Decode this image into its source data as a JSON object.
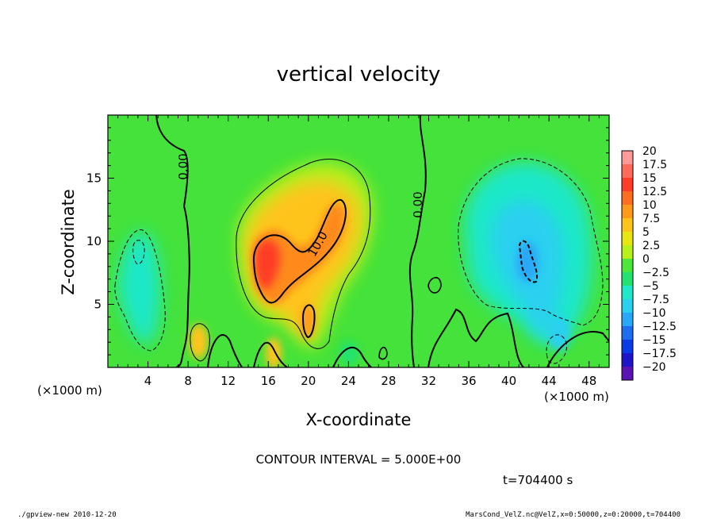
{
  "chart_data": {
    "type": "heatmap",
    "title": "vertical velocity",
    "xlabel": "X-coordinate",
    "ylabel": "Z-coordinate",
    "x_unit_label": "(×1000 m)",
    "z_unit_label": "(×1000 m)",
    "xlim": [
      0,
      50
    ],
    "zlim": [
      0,
      20
    ],
    "x_ticks": [
      4,
      8,
      12,
      16,
      20,
      24,
      28,
      32,
      36,
      40,
      44,
      48
    ],
    "z_ticks": [
      5,
      10,
      15
    ],
    "colorbar_levels": [
      20,
      17.5,
      15,
      12.5,
      10,
      7.5,
      5,
      2.5,
      0,
      -2.5,
      -5,
      -7.5,
      -10,
      -12.5,
      -15,
      -17.5,
      -20
    ],
    "colorbar_labels": [
      "20",
      "17.5",
      "15",
      "12.5",
      "10",
      "7.5",
      "5",
      "2.5",
      "0",
      "−2.5",
      "−5",
      "−7.5",
      "−10",
      "−12.5",
      "−15",
      "−17.5",
      "−20"
    ],
    "colorbar_colors": [
      "#ff9a9a",
      "#ff6a5a",
      "#ff3c28",
      "#ff6e1e",
      "#ff9a1a",
      "#ffc41a",
      "#e8e610",
      "#b8f01a",
      "#4ce63c",
      "#24e270",
      "#1ee8c8",
      "#2ad0f0",
      "#2aa8f8",
      "#1e6ef0",
      "#0a3ce6",
      "#1e14c8",
      "#5a14b4"
    ],
    "contour_labels": [
      "0.00",
      "0.00",
      "10.0"
    ],
    "contour_interval_text": "CONTOUR INTERVAL = 5.000E+00",
    "time_text": "t=704400 s",
    "regions": [
      {
        "name": "updraft",
        "x": 19,
        "z": 9,
        "peak": 15
      },
      {
        "name": "downdraft-east",
        "x": 43,
        "z": 8,
        "min": -10
      },
      {
        "name": "downdraft-west",
        "x": 3.5,
        "z": 6,
        "min": -5
      }
    ]
  },
  "footer": {
    "left": "./gpview-new  2010-12-20",
    "right": "MarsCond_VelZ.nc@VelZ,x=0:50000,z=0:20000,t=704400"
  }
}
